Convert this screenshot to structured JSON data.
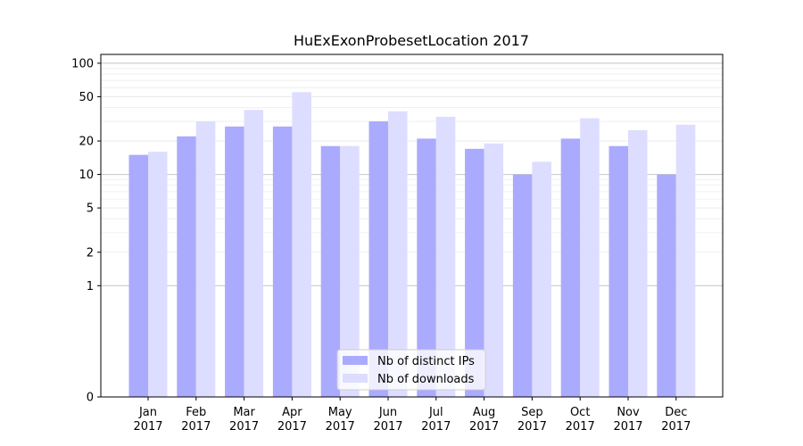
{
  "chart_data": {
    "type": "bar",
    "title": "HuExExonProbesetLocation 2017",
    "xlabel": "",
    "ylabel": "",
    "y_scale": "symlog",
    "ylim": [
      0,
      120
    ],
    "y_ticks": [
      0,
      1,
      2,
      5,
      10,
      20,
      50,
      100
    ],
    "y_tick_labels": [
      "0",
      "1",
      "2",
      "5",
      "10",
      "20",
      "50",
      "100"
    ],
    "grid": "horizontal",
    "legend_position": "bottom-center",
    "categories": [
      "Jan",
      "Feb",
      "Mar",
      "Apr",
      "May",
      "Jun",
      "Jul",
      "Aug",
      "Sep",
      "Oct",
      "Nov",
      "Dec"
    ],
    "category_years": [
      "2017",
      "2017",
      "2017",
      "2017",
      "2017",
      "2017",
      "2017",
      "2017",
      "2017",
      "2017",
      "2017",
      "2017"
    ],
    "series": [
      {
        "name": "Nb of distinct IPs",
        "color": "#aaaaff",
        "values": [
          15,
          22,
          27,
          27,
          18,
          30,
          21,
          17,
          10,
          21,
          18,
          10
        ]
      },
      {
        "name": "Nb of downloads",
        "color": "#ddddff",
        "values": [
          16,
          30,
          38,
          55,
          18,
          37,
          33,
          19,
          13,
          32,
          25,
          28
        ]
      }
    ]
  }
}
